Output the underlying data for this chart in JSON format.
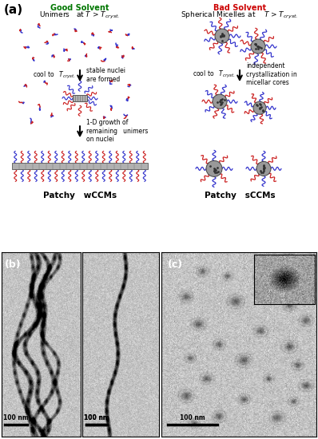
{
  "fig_width": 3.98,
  "fig_height": 5.5,
  "dpi": 100,
  "panel_a_label": "(a)",
  "good_solvent_label": "Good Solvent",
  "good_solvent_color": "#007700",
  "bad_solvent_label": "Bad Solvent",
  "bad_solvent_color": "#cc0000",
  "patchy_wccms_label": "Patchy   wCCMs",
  "patchy_sccms_label": "Patchy   sCCMs",
  "bg_color": "#ffffff",
  "blue_color": "#3333cc",
  "red_color": "#cc2222",
  "black_color": "#111111",
  "gray_core_color": "#999999"
}
